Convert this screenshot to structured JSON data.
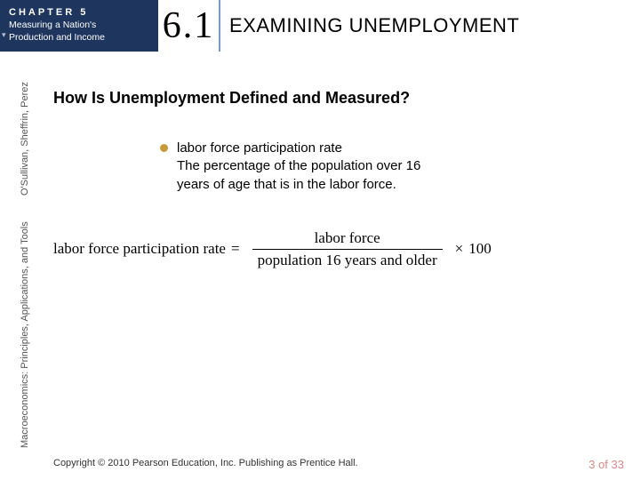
{
  "header": {
    "chapter_label": "CHAPTER 5",
    "chapter_subtitle_line1": "Measuring a Nation's",
    "chapter_subtitle_line2": "Production and Income",
    "section_number": "6.1",
    "section_title": "EXAMINING UNEMPLOYMENT"
  },
  "sidebar": {
    "book_title": "Macroeconomics: Principles, Applications, and Tools",
    "authors": "O'Sullivan, Sheffrin, Perez"
  },
  "content": {
    "question": "How Is Unemployment Defined and Measured?",
    "bullet": {
      "term": "labor force participation rate",
      "definition": "The percentage of the population over 16 years of age that is in the labor force.",
      "bullet_color": "#c99a3c"
    },
    "formula": {
      "lhs": "labor force participation rate",
      "eq": "=",
      "numerator": "labor force",
      "denominator": "population 16 years and older",
      "times": "×",
      "rhs": "100"
    }
  },
  "footer": {
    "copyright": "Copyright © 2010  Pearson Education, Inc. Publishing as Prentice Hall.",
    "page": "3 of 33"
  },
  "colors": {
    "header_bg": "#1e355e",
    "divider": "#7a99c2",
    "page_num": "#d88"
  }
}
